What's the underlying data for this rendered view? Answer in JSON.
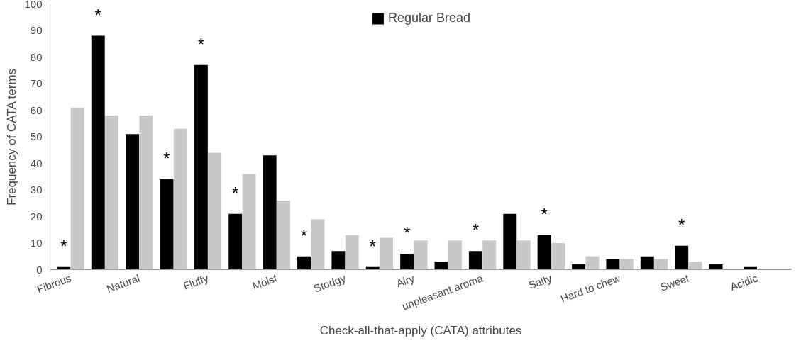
{
  "chart_data": {
    "type": "bar",
    "xlabel": "Check-all-that-apply (CATA) attributes",
    "ylabel": "Frequency of CATA terms",
    "categories": [
      "Fibrous",
      null,
      "Natural",
      null,
      "Fluffy",
      null,
      "Moist",
      null,
      "Stodgy",
      null,
      "Airy",
      null,
      "unpleasant aroma",
      null,
      "Salty",
      null,
      "Hard to chew",
      null,
      "Sweet",
      null,
      "Acidic"
    ],
    "series": [
      {
        "name": "Regular Bread",
        "color": "#000000",
        "values": [
          1,
          88,
          51,
          34,
          77,
          21,
          43,
          5,
          7,
          1,
          6,
          3,
          7,
          21,
          13,
          2,
          4,
          5,
          9,
          2,
          1
        ]
      },
      {
        "color": "#c8c8c8",
        "values": [
          61,
          58,
          58,
          53,
          44,
          36,
          26,
          19,
          13,
          12,
          11,
          11,
          11,
          11,
          10,
          5,
          4,
          4,
          3,
          0,
          0
        ]
      }
    ],
    "ylim": [
      0,
      100
    ],
    "yticks": [
      0,
      10,
      20,
      30,
      40,
      50,
      60,
      70,
      80,
      90,
      100
    ],
    "grid": false,
    "legend": "top",
    "annotations": [
      "*",
      "*",
      "*",
      "*",
      "*",
      "*",
      "*",
      "*",
      "*",
      "*",
      "*"
    ]
  }
}
